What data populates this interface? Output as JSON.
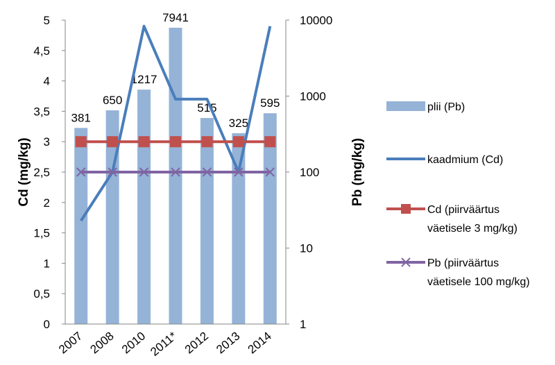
{
  "chart_data": {
    "type": "bar",
    "categories": [
      "2007",
      "2008",
      "2010",
      "2011*",
      "2012",
      "2013",
      "2014"
    ],
    "y_left": {
      "label": "Cd (mg/kg)",
      "min": 0,
      "max": 5,
      "ticks": [
        "0",
        "0,5",
        "1",
        "1,5",
        "2",
        "2,5",
        "3",
        "3,5",
        "4",
        "4,5",
        "5"
      ]
    },
    "y_right": {
      "label": "Pb (mg/kg)",
      "scale": "log",
      "min": 1,
      "max": 10000,
      "ticks": [
        "1",
        "10",
        "100",
        "1000",
        "10000"
      ]
    },
    "series": [
      {
        "name": "plii (Pb)",
        "kind": "bar",
        "axis": "right",
        "color": "#95B3D7",
        "values": [
          381,
          650,
          1217,
          7941,
          515,
          325,
          595
        ],
        "data_labels": [
          "381",
          "650",
          "1217",
          "7941",
          "515",
          "325",
          "595"
        ]
      },
      {
        "name": "kaadmium (Cd)",
        "kind": "line",
        "axis": "left",
        "color": "#4A7EBB",
        "values": [
          1.7,
          2.5,
          4.9,
          3.7,
          3.7,
          2.5,
          4.9
        ]
      },
      {
        "name_lines": [
          "Cd (piirväärtus",
          "väetisele 3 mg/kg)"
        ],
        "kind": "line",
        "marker": "square",
        "axis": "left",
        "color": "#C0504D",
        "values": [
          3,
          3,
          3,
          3,
          3,
          3,
          3
        ]
      },
      {
        "name_lines": [
          "Pb (piirväärtus",
          "väetisele 100 mg/kg)"
        ],
        "kind": "line",
        "marker": "x",
        "axis": "right",
        "color": "#8064A2",
        "values": [
          100,
          100,
          100,
          100,
          100,
          100,
          100
        ]
      }
    ],
    "grid": false,
    "legend": "right"
  }
}
